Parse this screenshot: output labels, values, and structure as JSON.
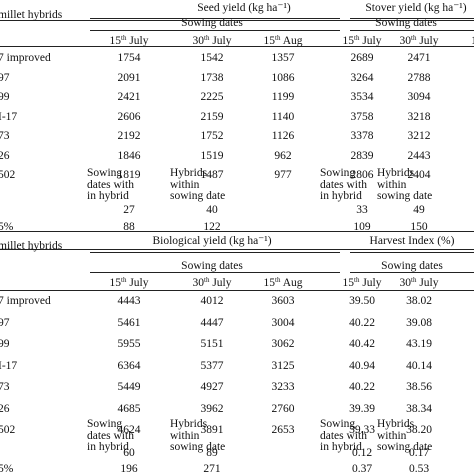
{
  "tables": [
    {
      "row_header": "millet hybrids",
      "groups": [
        {
          "title": "Seed yield (kg ha⁻¹)",
          "subtitle": "Sowing dates"
        },
        {
          "title": "Stover yield (kg ha⁻¹)",
          "subtitle": "Sowing dates"
        }
      ],
      "date_cols": [
        {
          "day": "15",
          "sup": "th",
          "month": " July"
        },
        {
          "day": "30",
          "sup": "th",
          "month": " July"
        },
        {
          "day": "15",
          "sup": "th",
          "month": " Aug"
        },
        {
          "day": "15",
          "sup": "th",
          "month": " July"
        },
        {
          "day": "30",
          "sup": "th",
          "month": " July"
        },
        {
          "day": "1",
          "sup": "",
          "month": ""
        }
      ],
      "rows": [
        {
          "name": "7 improved",
          "values": [
            "1754",
            "1542",
            "1357",
            "2689",
            "2471",
            ""
          ]
        },
        {
          "name": "97",
          "values": [
            "2091",
            "1738",
            "1086",
            "3264",
            "2788",
            ""
          ]
        },
        {
          "name": "99",
          "values": [
            "2421",
            "2225",
            "1199",
            "3534",
            "3094",
            ""
          ]
        },
        {
          "name": "I-17",
          "values": [
            "2606",
            "2159",
            "1140",
            "3758",
            "3218",
            ""
          ]
        },
        {
          "name": "73",
          "values": [
            "2192",
            "1752",
            "1126",
            "3378",
            "3212",
            ""
          ]
        },
        {
          "name": "26",
          "values": [
            "1846",
            "1519",
            "962",
            "2839",
            "2443",
            ""
          ]
        },
        {
          "name": "502",
          "values": [
            "1819",
            "1487",
            "977",
            "2806",
            "2404",
            ""
          ]
        }
      ],
      "lsd_labels": [
        [
          "Sowing",
          "dates with",
          "in hybrid"
        ],
        [
          "Hybrids",
          "within",
          "sowing date"
        ],
        [
          "Sowing",
          "dates with",
          "in hybrid"
        ],
        [
          "Hybrids",
          "within",
          "sowing date"
        ]
      ],
      "lsd_row1": {
        "name": "",
        "values": [
          "27",
          "40",
          "33",
          "49"
        ]
      },
      "lsd_row2": {
        "name": "5%",
        "values": [
          "88",
          "122",
          "109",
          "150"
        ]
      }
    },
    {
      "row_header": "millet hybrids",
      "groups": [
        {
          "title": "Biological yield (kg ha⁻¹)",
          "subtitle": "Sowing dates"
        },
        {
          "title": "Harvest Index (%)",
          "subtitle": "Sowing dates"
        }
      ],
      "date_cols": [
        {
          "day": "15",
          "sup": "th",
          "month": " July"
        },
        {
          "day": "30",
          "sup": "th",
          "month": " July"
        },
        {
          "day": "15",
          "sup": "th",
          "month": " Aug"
        },
        {
          "day": "15",
          "sup": "th",
          "month": " July"
        },
        {
          "day": "30",
          "sup": "th",
          "month": " July"
        },
        {
          "day": "",
          "sup": "",
          "month": ""
        }
      ],
      "rows": [
        {
          "name": "7 improved",
          "values": [
            "4443",
            "4012",
            "3603",
            "39.50",
            "38.02",
            ""
          ]
        },
        {
          "name": "97",
          "values": [
            "5461",
            "4447",
            "3004",
            "40.22",
            "39.08",
            ""
          ]
        },
        {
          "name": "99",
          "values": [
            "5955",
            "5151",
            "3062",
            "40.42",
            "43.19",
            ""
          ]
        },
        {
          "name": "I-17",
          "values": [
            "6364",
            "5377",
            "3125",
            "40.94",
            "40.14",
            ""
          ]
        },
        {
          "name": "73",
          "values": [
            "5449",
            "4927",
            "3233",
            "40.22",
            "38.56",
            ""
          ]
        },
        {
          "name": "26",
          "values": [
            "4685",
            "3962",
            "2760",
            "39.39",
            "38.34",
            ""
          ]
        },
        {
          "name": "502",
          "values": [
            "4624",
            "3891",
            "2653",
            "39.33",
            "38.20",
            ""
          ]
        }
      ],
      "lsd_labels": [
        [
          "Sowing",
          "dates with",
          "in hybrid"
        ],
        [
          "Hybrids",
          "within",
          "sowing date"
        ],
        [
          "Sowing",
          "dates with",
          "in hybrid"
        ],
        [
          "Hybrids",
          "within",
          "sowing date"
        ]
      ],
      "lsd_row1": {
        "name": "",
        "values": [
          "60",
          "89",
          "0.12",
          "0.17"
        ]
      },
      "lsd_row2": {
        "name": "5%",
        "values": [
          "196",
          "271",
          "0.37",
          "0.53"
        ]
      }
    }
  ]
}
